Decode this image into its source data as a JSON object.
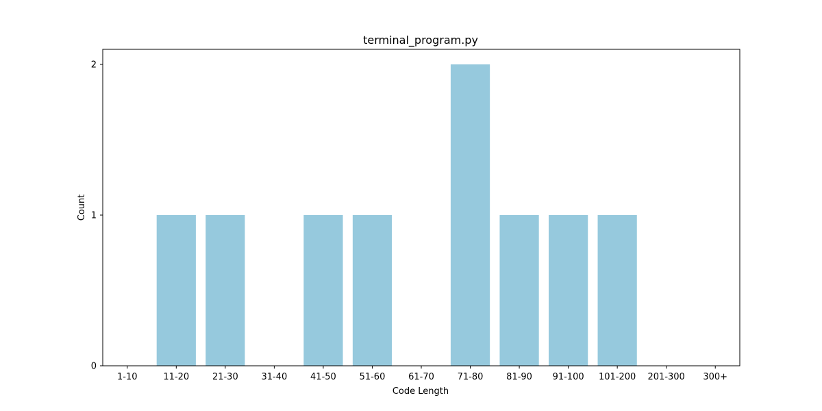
{
  "chart_data": {
    "type": "bar",
    "title": "terminal_program.py",
    "xlabel": "Code Length",
    "ylabel": "Count",
    "categories": [
      "1-10",
      "11-20",
      "21-30",
      "31-40",
      "41-50",
      "51-60",
      "61-70",
      "71-80",
      "81-90",
      "91-100",
      "101-200",
      "201-300",
      "300+"
    ],
    "values": [
      0,
      1,
      1,
      0,
      1,
      1,
      0,
      2,
      1,
      1,
      1,
      0,
      0
    ],
    "ylim": [
      0,
      2.1
    ],
    "yticks": [
      0,
      1,
      2
    ],
    "grid": false,
    "legend": "none",
    "bar_color": "#96c9dd"
  }
}
